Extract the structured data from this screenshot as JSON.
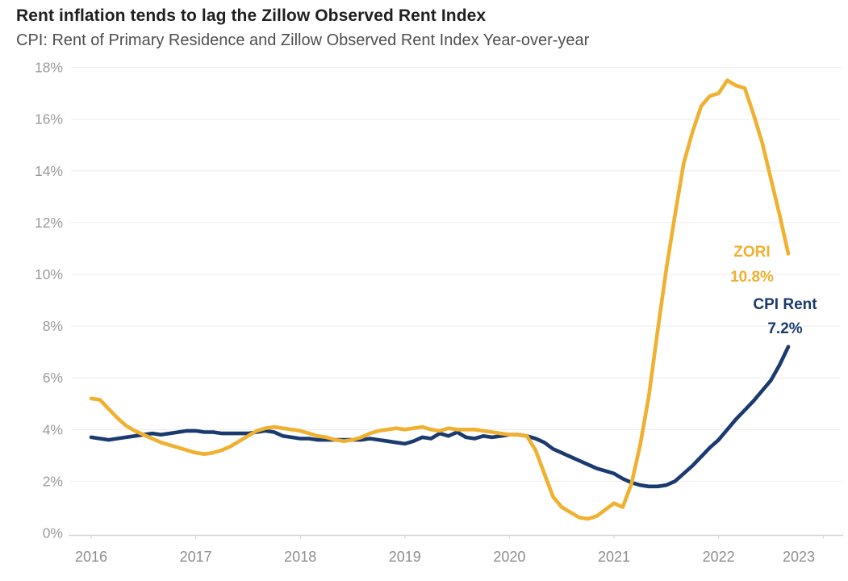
{
  "header": {
    "title": "Rent inflation tends to lag the Zillow Observed Rent Index",
    "subtitle": "CPI: Rent of Primary Residence and Zillow Observed Rent Index Year-over-year"
  },
  "colors": {
    "zori_line": "#F0B030",
    "cpi_line": "#1B3A70",
    "gridline": "#ECECEC",
    "axis_line": "#D5D5D5",
    "y_tick_text": "#9B9B9B",
    "x_tick_text": "#8F8F8F",
    "title_text": "#1F1F1F",
    "subtitle_text": "#4F4F4F"
  },
  "chart_data": {
    "type": "line",
    "title": "Rent inflation tends to lag the Zillow Observed Rent Index",
    "subtitle": "CPI: Rent of Primary Residence and Zillow Observed Rent Index Year-over-year",
    "x_interval": "monthly",
    "x_start": "2016-01",
    "x_end": "2022-09",
    "x_tick_labels": [
      "2016",
      "2017",
      "2018",
      "2019",
      "2020",
      "2021",
      "2022",
      "2023"
    ],
    "y_tick_labels": [
      "0%",
      "2%",
      "4%",
      "6%",
      "8%",
      "10%",
      "12%",
      "14%",
      "16%",
      "18%"
    ],
    "ylim": [
      0,
      18
    ],
    "grid": "horizontal",
    "legend_position": "end-of-line-labels",
    "series": [
      {
        "name": "CPI Rent",
        "color": "#1B3A70",
        "end_label": "CPI Rent",
        "end_value_label": "7.2%",
        "values": [
          3.7,
          3.65,
          3.6,
          3.65,
          3.7,
          3.75,
          3.8,
          3.85,
          3.8,
          3.85,
          3.9,
          3.95,
          3.95,
          3.9,
          3.9,
          3.85,
          3.85,
          3.85,
          3.85,
          3.9,
          3.95,
          3.9,
          3.75,
          3.7,
          3.65,
          3.65,
          3.6,
          3.6,
          3.6,
          3.6,
          3.6,
          3.6,
          3.65,
          3.6,
          3.55,
          3.5,
          3.45,
          3.55,
          3.7,
          3.65,
          3.85,
          3.75,
          3.9,
          3.7,
          3.65,
          3.75,
          3.7,
          3.75,
          3.8,
          3.8,
          3.75,
          3.65,
          3.5,
          3.25,
          3.1,
          2.95,
          2.8,
          2.65,
          2.5,
          2.4,
          2.3,
          2.1,
          1.95,
          1.85,
          1.8,
          1.8,
          1.85,
          2.0,
          2.3,
          2.6,
          2.95,
          3.3,
          3.6,
          4.0,
          4.4,
          4.75,
          5.1,
          5.5,
          5.9,
          6.5,
          7.2
        ]
      },
      {
        "name": "ZORI",
        "color": "#F0B030",
        "end_label": "ZORI",
        "end_value_label": "10.8%",
        "values": [
          5.2,
          5.15,
          4.8,
          4.45,
          4.15,
          3.95,
          3.8,
          3.65,
          3.5,
          3.4,
          3.3,
          3.2,
          3.1,
          3.05,
          3.1,
          3.2,
          3.35,
          3.55,
          3.75,
          3.95,
          4.05,
          4.1,
          4.05,
          4.0,
          3.95,
          3.85,
          3.75,
          3.7,
          3.6,
          3.55,
          3.6,
          3.7,
          3.85,
          3.95,
          4.0,
          4.05,
          4.0,
          4.05,
          4.1,
          4.0,
          3.95,
          4.05,
          4.0,
          4.0,
          4.0,
          3.95,
          3.9,
          3.85,
          3.8,
          3.8,
          3.75,
          3.2,
          2.3,
          1.4,
          1.0,
          0.8,
          0.6,
          0.55,
          0.65,
          0.9,
          1.15,
          1.0,
          1.9,
          3.4,
          5.3,
          7.8,
          10.2,
          12.3,
          14.3,
          15.5,
          16.5,
          16.9,
          17.0,
          17.5,
          17.3,
          17.2,
          16.2,
          15.1,
          13.7,
          12.3,
          10.8
        ]
      }
    ]
  }
}
